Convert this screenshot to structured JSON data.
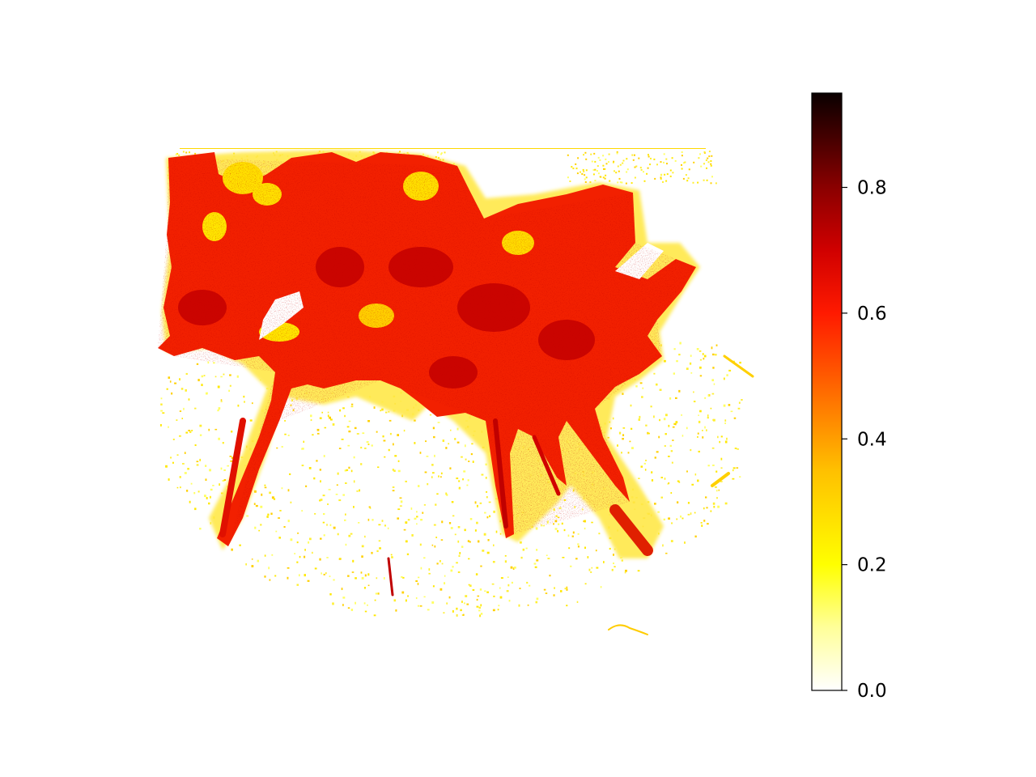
{
  "chart_data": {
    "type": "heatmap",
    "title": "",
    "xlabel": "",
    "ylabel": "",
    "axes_visible": false,
    "grid": false,
    "colormap": "gist_heat_r",
    "colorbar": {
      "position": "right",
      "range": [
        0.0,
        0.95
      ],
      "ticks": [
        0.0,
        0.2,
        0.4,
        0.6,
        0.8
      ],
      "tick_labels": [
        "0.0",
        "0.2",
        "0.4",
        "0.6",
        "0.8"
      ],
      "gradient_stops": [
        {
          "value": 0.0,
          "color": "#ffffff"
        },
        {
          "value": 0.1,
          "color": "#ffff99"
        },
        {
          "value": 0.2,
          "color": "#ffff00"
        },
        {
          "value": 0.35,
          "color": "#ffc000"
        },
        {
          "value": 0.5,
          "color": "#ff5a00"
        },
        {
          "value": 0.6,
          "color": "#ff1a00"
        },
        {
          "value": 0.7,
          "color": "#d00000"
        },
        {
          "value": 0.8,
          "color": "#8a0000"
        },
        {
          "value": 0.88,
          "color": "#440000"
        },
        {
          "value": 0.95,
          "color": "#0a0000"
        }
      ]
    },
    "regions": [
      {
        "name": "dense-core",
        "approx_value": 0.62,
        "color": "#f01a00"
      },
      {
        "name": "core-highlights",
        "approx_value": 0.72,
        "color": "#c80000"
      },
      {
        "name": "fringe",
        "approx_value": 0.25,
        "color": "#ffe600"
      },
      {
        "name": "sparse-scatter",
        "approx_value": 0.12,
        "color": "#ffff80"
      }
    ]
  }
}
